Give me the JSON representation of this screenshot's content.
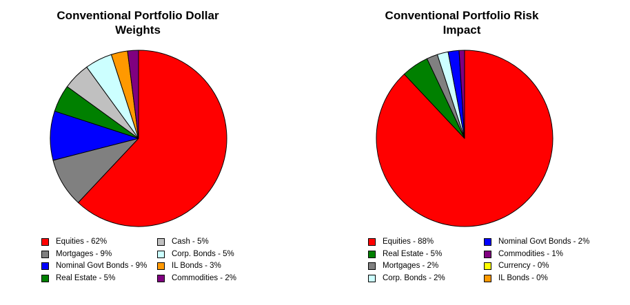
{
  "chart_data": [
    {
      "type": "pie",
      "title": "Conventional Portfolio Dollar Weights",
      "title_lines": [
        "Conventional Portfolio Dollar",
        "Weights"
      ],
      "slices": [
        {
          "name": "Equities",
          "value": 62,
          "label": "Equities - 62%",
          "color": "#FF0000"
        },
        {
          "name": "Mortgages",
          "value": 9,
          "label": "Mortgages - 9%",
          "color": "#808080"
        },
        {
          "name": "Nominal Govt Bonds",
          "value": 9,
          "label": "Nominal Govt Bonds - 9%",
          "color": "#0000FF"
        },
        {
          "name": "Real Estate",
          "value": 5,
          "label": "Real Estate - 5%",
          "color": "#008000"
        },
        {
          "name": "Cash",
          "value": 5,
          "label": "Cash - 5%",
          "color": "#C0C0C0"
        },
        {
          "name": "Corp. Bonds",
          "value": 5,
          "label": "Corp. Bonds - 5%",
          "color": "#CCFFFF"
        },
        {
          "name": "IL Bonds",
          "value": 3,
          "label": "IL Bonds - 3%",
          "color": "#FF9900"
        },
        {
          "name": "Commodities",
          "value": 2,
          "label": "Commodities - 2%",
          "color": "#800080"
        }
      ],
      "legend_columns": [
        [
          "Equities",
          "Mortgages",
          "Nominal Govt Bonds",
          "Real Estate"
        ],
        [
          "Cash",
          "Corp. Bonds",
          "IL Bonds",
          "Commodities"
        ]
      ],
      "legend_placement": "bottom"
    },
    {
      "type": "pie",
      "title": "Conventional Portfolio Risk Impact",
      "title_lines": [
        "Conventional Portfolio Risk",
        "Impact"
      ],
      "slices": [
        {
          "name": "Equities",
          "value": 88,
          "label": "Equities - 88%",
          "color": "#FF0000"
        },
        {
          "name": "Real Estate",
          "value": 5,
          "label": "Real Estate - 5%",
          "color": "#008000"
        },
        {
          "name": "Mortgages",
          "value": 2,
          "label": "Mortgages - 2%",
          "color": "#808080"
        },
        {
          "name": "Corp. Bonds",
          "value": 2,
          "label": "Corp. Bonds - 2%",
          "color": "#CCFFFF"
        },
        {
          "name": "Nominal Govt Bonds",
          "value": 2,
          "label": "Nominal Govt Bonds - 2%",
          "color": "#0000FF"
        },
        {
          "name": "Commodities",
          "value": 1,
          "label": "Commodities - 1%",
          "color": "#800080"
        },
        {
          "name": "Currency",
          "value": 0,
          "label": "Currency - 0%",
          "color": "#FFFF00"
        },
        {
          "name": "IL Bonds",
          "value": 0,
          "label": "IL Bonds - 0%",
          "color": "#FF9900"
        }
      ],
      "legend_columns": [
        [
          "Equities",
          "Real Estate",
          "Mortgages",
          "Corp. Bonds"
        ],
        [
          "Nominal Govt Bonds",
          "Commodities",
          "Currency",
          "IL Bonds"
        ]
      ],
      "legend_placement": "bottom"
    }
  ]
}
